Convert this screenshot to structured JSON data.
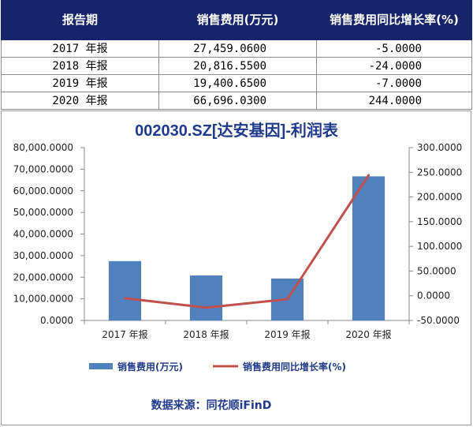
{
  "table": {
    "headers": [
      "报告期",
      "销售费用(万元)",
      "销售费用同比增长率(%)"
    ],
    "rows": [
      {
        "period": "2017 年报",
        "expense": "27,459.0600",
        "growth": "-5.0000"
      },
      {
        "period": "2018 年报",
        "expense": "20,816.5500",
        "growth": "-24.0000"
      },
      {
        "period": "2019 年报",
        "expense": "19,400.6500",
        "growth": "-7.0000"
      },
      {
        "period": "2020 年报",
        "expense": "66,696.0300",
        "growth": "244.0000"
      }
    ]
  },
  "chart_data": {
    "type": "bar",
    "title": "002030.SZ[达安基因]-利润表",
    "categories": [
      "2017 年报",
      "2018 年报",
      "2019 年报",
      "2020 年报"
    ],
    "series": [
      {
        "name": "销售费用(万元)",
        "type": "bar",
        "axis": "left",
        "color": "#4f81bd",
        "values": [
          27459.06,
          20816.55,
          19400.65,
          66696.03
        ]
      },
      {
        "name": "销售费用同比增长率(%)",
        "type": "line",
        "axis": "right",
        "color": "#c0504d",
        "values": [
          -5.0,
          -24.0,
          -7.0,
          244.0
        ]
      }
    ],
    "y_left": {
      "min": 0,
      "max": 80000,
      "step": 10000,
      "tick_labels": [
        "0.0000",
        "10,000.0000",
        "20,000.0000",
        "30,000.0000",
        "40,000.0000",
        "50,000.0000",
        "60,000.0000",
        "70,000.0000",
        "80,000.0000"
      ]
    },
    "y_right": {
      "min": -50,
      "max": 300,
      "step": 50,
      "tick_labels": [
        "-50.0000",
        "0.0000",
        "50.0000",
        "100.0000",
        "150.0000",
        "200.0000",
        "250.0000",
        "300.0000"
      ]
    },
    "legend_position": "bottom",
    "grid": false
  },
  "source": "数据来源：同花顺iFinD"
}
